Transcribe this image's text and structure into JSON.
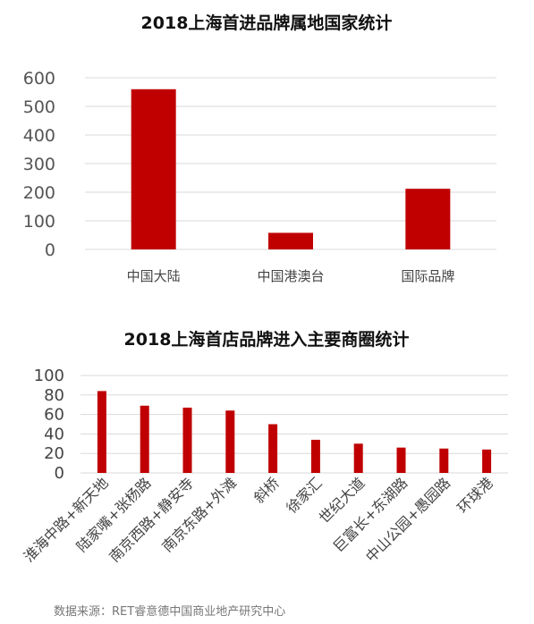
{
  "colors": {
    "bar": "#C00000",
    "grid": "#D9D9D9"
  },
  "chart_data": [
    {
      "type": "bar",
      "title": "2018上海首进品牌属地国家统计",
      "categories": [
        "中国大陆",
        "中国港澳台",
        "国际品牌"
      ],
      "values": [
        560,
        58,
        212
      ],
      "yticks": [
        0,
        100,
        200,
        300,
        400,
        500,
        600
      ],
      "ylim": [
        0,
        600
      ],
      "grid": true,
      "legend": "none"
    },
    {
      "type": "bar",
      "title": "2018上海首店品牌进入主要商圈统计",
      "categories": [
        "淮海中路+新天地",
        "陆家嘴+张杨路",
        "南京西路+静安寺",
        "南京东路+外滩",
        "斜桥",
        "徐家汇",
        "世纪大道",
        "巨富长+东湖路",
        "中山公园+愚园路",
        "环球港"
      ],
      "values": [
        84,
        69,
        67,
        64,
        50,
        34,
        30,
        26,
        25,
        24
      ],
      "yticks": [
        0,
        20,
        40,
        60,
        80,
        100
      ],
      "ylim": [
        0,
        100
      ],
      "grid": true,
      "legend": "none"
    }
  ],
  "source": "数据来源：RET睿意德中国商业地产研究中心"
}
